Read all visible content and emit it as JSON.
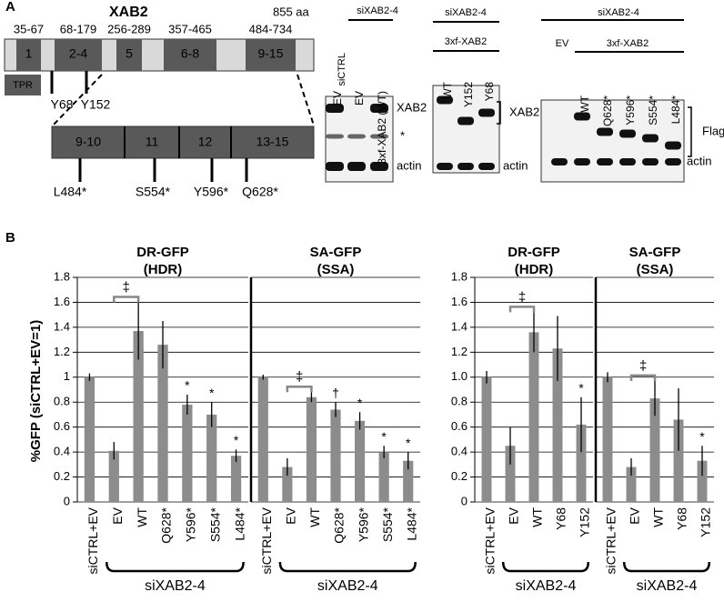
{
  "panel_a": {
    "label": "A",
    "protein": "XAB2",
    "length": "855 aa",
    "tpr": "TPR",
    "domains": [
      {
        "range": "35-67",
        "label": "1"
      },
      {
        "range": "68-179",
        "label": "2-4"
      },
      {
        "range": "256-289",
        "label": "5"
      },
      {
        "range": "357-465",
        "label": "6-8"
      },
      {
        "range": "484-734",
        "label": "9-15"
      }
    ],
    "mutations": [
      "Y68",
      "Y152"
    ],
    "zoom_domains": [
      "9-10",
      "11",
      "12",
      "13-15"
    ],
    "zoom_mutations": [
      "L484*",
      "S554*",
      "Y596*",
      "Q628*"
    ],
    "blots": [
      {
        "control": "siCTRL",
        "group": "siXAB2-4",
        "lanes": [
          "EV",
          "EV",
          "3xf-XAB2 (WT)"
        ],
        "labels": [
          "XAB2",
          "*",
          "actin"
        ]
      },
      {
        "group": "siXAB2-4",
        "subgroup": "3xf-XAB2",
        "lanes": [
          "WT",
          "Y152",
          "Y68"
        ],
        "labels": [
          "XAB2",
          "actin"
        ]
      },
      {
        "group": "siXAB2-4",
        "control": "EV",
        "subgroup": "3xf-XAB2",
        "lanes": [
          "WT",
          "Q628*",
          "Y596*",
          "S554*",
          "L484*"
        ],
        "labels": [
          "Flag",
          "actin"
        ]
      }
    ]
  },
  "panel_b_label": "B",
  "y_label": "%GFP (siCTRL+EV=1)",
  "chart_data": [
    {
      "type": "bar",
      "title": "DR-GFP",
      "subtitle": "(HDR)",
      "group_label": "siXAB2-4",
      "bracket_label": "‡",
      "color": "#8c8c8c",
      "grid": true,
      "tick_labels": true,
      "categories": [
        "siCTRL+EV",
        "EV",
        "WT",
        "Q628*",
        "Y596*",
        "S554*",
        "L484*"
      ],
      "values": [
        1.0,
        0.41,
        1.37,
        1.26,
        0.78,
        0.7,
        0.37
      ],
      "errors": [
        0.03,
        0.07,
        0.23,
        0.19,
        0.08,
        0.1,
        0.05
      ],
      "annotations": [
        null,
        null,
        null,
        null,
        "*",
        "*",
        "*"
      ],
      "ylim": [
        0,
        1.8
      ],
      "yticks": [
        0,
        0.2,
        0.4,
        0.6,
        0.8,
        1,
        1.2,
        1.4,
        1.6,
        1.8
      ]
    },
    {
      "type": "bar",
      "title": "SA-GFP",
      "subtitle": "(SSA)",
      "group_label": "siXAB2-4",
      "bracket_label": "‡",
      "color": "#8c8c8c",
      "grid": true,
      "tick_labels": false,
      "categories": [
        "siCTRL+EV",
        "EV",
        "WT",
        "Q628*",
        "Y596*",
        "S554*",
        "L484*"
      ],
      "values": [
        1.0,
        0.28,
        0.84,
        0.74,
        0.65,
        0.4,
        0.33
      ],
      "errors": [
        0.02,
        0.07,
        0.04,
        0.06,
        0.07,
        0.05,
        0.07
      ],
      "annotations": [
        null,
        null,
        null,
        "†",
        "*",
        "*",
        "*"
      ],
      "ylim": [
        0,
        1.8
      ],
      "yticks": [
        0,
        0.2,
        0.4,
        0.6,
        0.8,
        1,
        1.2,
        1.4,
        1.6,
        1.8
      ]
    },
    {
      "type": "bar",
      "title": "DR-GFP",
      "subtitle": "(HDR)",
      "group_label": "siXAB2-4",
      "bracket_label": "‡",
      "color": "#8c8c8c",
      "grid": true,
      "tick_labels": true,
      "categories": [
        "siCTRL+EV",
        "EV",
        "WT",
        "Y68",
        "Y152"
      ],
      "values": [
        1.0,
        0.45,
        1.36,
        1.23,
        0.62
      ],
      "errors": [
        0.05,
        0.15,
        0.16,
        0.26,
        0.22
      ],
      "annotations": [
        null,
        null,
        null,
        null,
        "*"
      ],
      "ylim": [
        0,
        1.8
      ],
      "yticks": [
        0,
        0.2,
        0.4,
        0.6,
        0.8,
        {
          "value": 1,
          "label": "1.0"
        },
        1.2,
        1.4,
        1.6,
        1.8
      ]
    },
    {
      "type": "bar",
      "title": "SA-GFP",
      "subtitle": "(SSA)",
      "group_label": "siXAB2-4",
      "bracket_label": "‡",
      "color": "#8c8c8c",
      "grid": true,
      "tick_labels": false,
      "categories": [
        "siCTRL+EV",
        "EV",
        "WT",
        "Y68",
        "Y152"
      ],
      "values": [
        1.0,
        0.28,
        0.83,
        0.66,
        0.33
      ],
      "errors": [
        0.04,
        0.07,
        0.14,
        0.25,
        0.12
      ],
      "annotations": [
        null,
        null,
        null,
        null,
        "*"
      ],
      "ylim": [
        0,
        1.8
      ],
      "yticks": [
        0,
        0.2,
        0.4,
        0.6,
        0.8,
        1,
        1.2,
        1.4,
        1.6,
        1.8
      ]
    }
  ]
}
